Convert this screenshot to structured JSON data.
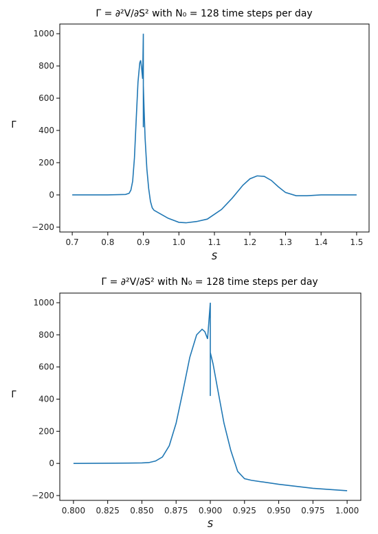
{
  "chart_data": [
    {
      "type": "line",
      "title": "Γ = ∂²V/∂S² with N₀ = 128 time steps per day",
      "xlabel": "S",
      "ylabel": "Γ",
      "xlim": [
        0.665,
        1.535
      ],
      "ylim": [
        -230,
        1060
      ],
      "xticks": [
        0.7,
        0.8,
        0.9,
        1.0,
        1.1,
        1.2,
        1.3,
        1.4,
        1.5
      ],
      "xtick_labels": [
        "0.7",
        "0.8",
        "0.9",
        "1.0",
        "1.1",
        "1.2",
        "1.3",
        "1.4",
        "1.5"
      ],
      "yticks": [
        -200,
        0,
        200,
        400,
        600,
        800,
        1000
      ],
      "ytick_labels": [
        "−200",
        "0",
        "200",
        "400",
        "600",
        "800",
        "1000"
      ],
      "grid": false,
      "color": "#1f77b4",
      "series": [
        {
          "x": [
            0.7,
            0.8,
            0.85,
            0.86,
            0.865,
            0.87,
            0.875,
            0.88,
            0.885,
            0.89,
            0.8925,
            0.895,
            0.898,
            0.9,
            0.9,
            0.9,
            0.902,
            0.905,
            0.91,
            0.915,
            0.92,
            0.925,
            0.93,
            0.95,
            0.97,
            1.0,
            1.02,
            1.05,
            1.08,
            1.1,
            1.12,
            1.15,
            1.18,
            1.2,
            1.22,
            1.24,
            1.26,
            1.28,
            1.3,
            1.33,
            1.36,
            1.4,
            1.45,
            1.5
          ],
          "y": [
            0,
            0,
            3,
            10,
            30,
            85,
            230,
            470,
            700,
            820,
            835,
            790,
            720,
            1000,
            420,
            680,
            540,
            350,
            160,
            40,
            -40,
            -80,
            -95,
            -120,
            -145,
            -170,
            -173,
            -165,
            -150,
            -120,
            -90,
            -20,
            60,
            100,
            118,
            115,
            90,
            50,
            15,
            -5,
            -5,
            0,
            0,
            0
          ]
        }
      ]
    },
    {
      "type": "line",
      "title": "Γ = ∂²V/∂S² with N₀ = 128 time steps per day",
      "xlabel": "S",
      "ylabel": "Γ",
      "xlim": [
        0.79,
        1.01
      ],
      "ylim": [
        -230,
        1060
      ],
      "xticks": [
        0.8,
        0.825,
        0.85,
        0.875,
        0.9,
        0.925,
        0.95,
        0.975,
        1.0
      ],
      "xtick_labels": [
        "0.800",
        "0.825",
        "0.850",
        "0.875",
        "0.900",
        "0.925",
        "0.950",
        "0.975",
        "1.000"
      ],
      "yticks": [
        -200,
        0,
        200,
        400,
        600,
        800,
        1000
      ],
      "ytick_labels": [
        "−200",
        "0",
        "200",
        "400",
        "600",
        "800",
        "1000"
      ],
      "grid": false,
      "color": "#1f77b4",
      "series": [
        {
          "x": [
            0.8,
            0.84,
            0.85,
            0.855,
            0.86,
            0.865,
            0.87,
            0.875,
            0.88,
            0.885,
            0.89,
            0.894,
            0.896,
            0.898,
            0.9,
            0.9,
            0.9,
            0.902,
            0.905,
            0.91,
            0.915,
            0.92,
            0.925,
            0.93,
            0.95,
            0.975,
            1.0
          ],
          "y": [
            0,
            2,
            3,
            5,
            15,
            40,
            110,
            250,
            450,
            660,
            800,
            835,
            820,
            775,
            1000,
            420,
            690,
            620,
            480,
            250,
            80,
            -50,
            -95,
            -105,
            -130,
            -155,
            -170
          ]
        }
      ]
    }
  ]
}
